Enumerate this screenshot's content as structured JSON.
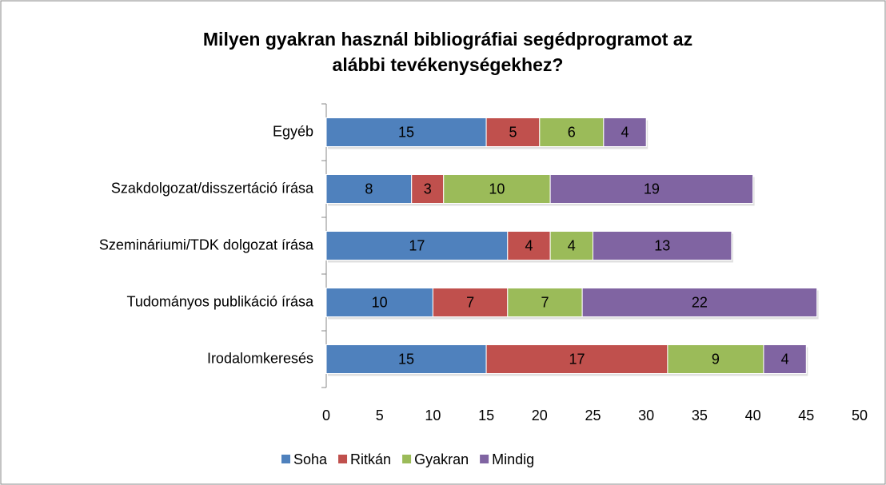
{
  "chart_data": {
    "type": "stacked_bar_horizontal",
    "title": [
      "Milyen gyakran használ bibliográfiai segédprogramot az",
      "alábbi tevékenységekhez?"
    ],
    "categories": [
      "Egyéb",
      "Szakdolgozat/disszertáció írása",
      "Szemináriumi/TDK dolgozat írása",
      "Tudományos publikáció írása",
      "Irodalomkeresés"
    ],
    "series": [
      {
        "name": "Soha",
        "color": "#4f81bd",
        "values": [
          15,
          8,
          17,
          10,
          15
        ]
      },
      {
        "name": "Ritkán",
        "color": "#c0504d",
        "values": [
          5,
          3,
          4,
          7,
          17
        ]
      },
      {
        "name": "Gyakran",
        "color": "#9bbb59",
        "values": [
          6,
          10,
          4,
          7,
          9
        ]
      },
      {
        "name": "Mindig",
        "color": "#8064a2",
        "values": [
          4,
          19,
          13,
          22,
          4
        ]
      }
    ],
    "xlim": [
      0,
      50
    ],
    "xticks": [
      0,
      5,
      10,
      15,
      20,
      25,
      30,
      35,
      40,
      45,
      50
    ],
    "grid": false,
    "legend": "bottom"
  }
}
